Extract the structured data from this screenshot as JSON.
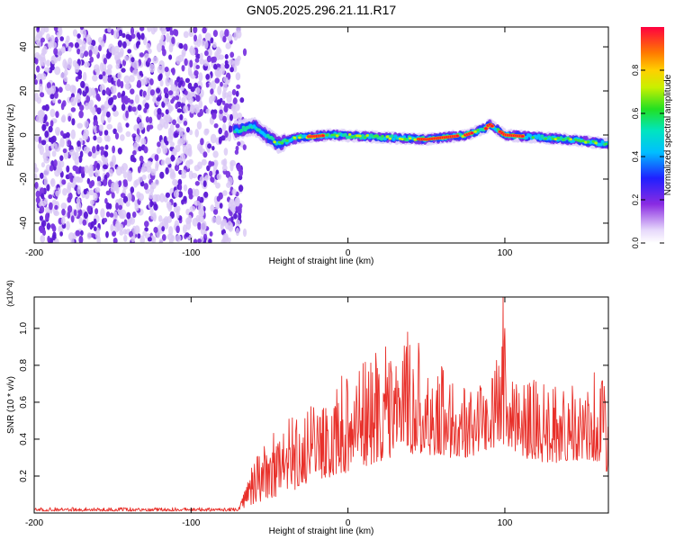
{
  "figure_title": "GN05.2025.296.21.11.R17",
  "colors": {
    "snr_line": "#e8302a",
    "axis": "#000000",
    "spec_faint": "#d9c8f5",
    "spec_dot": "#7a36e0",
    "spec_dark": "#5a17d4"
  },
  "chart_data": [
    {
      "id": "spectrogram",
      "type": "heatmap",
      "title": "GN05.2025.296.21.11.R17",
      "xlabel": "Height of straight line (km)",
      "ylabel": "Frequency (Hz)",
      "xlim": [
        -200,
        166
      ],
      "ylim": [
        -49,
        49
      ],
      "x_ticks": [
        -200,
        -100,
        0,
        100
      ],
      "x_tick_labels": [
        "-200",
        "-100",
        "0",
        "100"
      ],
      "y_ticks": [
        -40,
        -20,
        0,
        20,
        40
      ],
      "y_tick_labels": [
        "-40",
        "-20",
        "0",
        "20",
        "40"
      ],
      "colorbar": {
        "label": "Normalized spectral amplitude",
        "range": [
          0,
          1
        ],
        "ticks": [
          0,
          0.2,
          0.4,
          0.6,
          0.8
        ],
        "tick_labels": [
          "0.0",
          "0.2",
          "0.4",
          "0.6",
          "0.8"
        ],
        "colormap": "rainbow (white-violet-blue-cyan-green-yellow-red)"
      },
      "features": {
        "noise_region_x": [
          -200,
          -68
        ],
        "signal_start_x": -72,
        "signal_center_freq_points": [
          [
            -72,
            2
          ],
          [
            -60,
            4
          ],
          [
            -45,
            -4
          ],
          [
            -30,
            -1
          ],
          [
            -10,
            0
          ],
          [
            20,
            -1
          ],
          [
            50,
            -2
          ],
          [
            75,
            0
          ],
          [
            88,
            3
          ],
          [
            90,
            5
          ],
          [
            100,
            0
          ],
          [
            140,
            -2
          ],
          [
            166,
            -4
          ]
        ],
        "peak_amplitude_x_ranges": [
          [
            -25,
            -15
          ],
          [
            45,
            70
          ],
          [
            75,
            80
          ],
          [
            88,
            92
          ],
          [
            97,
            112
          ]
        ]
      }
    },
    {
      "id": "snr",
      "type": "line",
      "xlabel": "Height of straight line (km)",
      "ylabel": "SNR (10 * v/v)",
      "y_scale_note": "(x10^4)",
      "xlim": [
        -200,
        166
      ],
      "ylim": [
        0,
        1.17
      ],
      "x_ticks": [
        -200,
        -100,
        0,
        100
      ],
      "x_tick_labels": [
        "-200",
        "-100",
        "0",
        "100"
      ],
      "y_ticks": [
        0.2,
        0.4,
        0.6,
        0.8,
        1.0
      ],
      "y_tick_labels": [
        "0.2",
        "0.4",
        "0.6",
        "0.8",
        "1.0"
      ],
      "series": [
        {
          "name": "SNR",
          "envelope_x": [
            -200,
            -70,
            -60,
            -50,
            -40,
            -30,
            -20,
            -10,
            0,
            10,
            20,
            30,
            40,
            50,
            60,
            70,
            80,
            90,
            95,
            100,
            105,
            110,
            120,
            130,
            140,
            150,
            160,
            166
          ],
          "envelope_low": [
            0.01,
            0.01,
            0.05,
            0.08,
            0.1,
            0.14,
            0.17,
            0.2,
            0.22,
            0.25,
            0.28,
            0.3,
            0.32,
            0.32,
            0.3,
            0.3,
            0.3,
            0.35,
            0.36,
            0.37,
            0.35,
            0.3,
            0.28,
            0.27,
            0.28,
            0.29,
            0.28,
            0.2
          ],
          "envelope_high": [
            0.03,
            0.03,
            0.28,
            0.42,
            0.52,
            0.55,
            0.6,
            0.66,
            0.8,
            0.86,
            0.9,
            0.92,
            0.98,
            0.85,
            0.8,
            0.7,
            0.68,
            0.75,
            0.85,
            1.17,
            0.7,
            0.72,
            0.74,
            0.72,
            0.68,
            0.74,
            0.76,
            0.65
          ],
          "spikes": [
            {
              "x": 38,
              "y": 0.98
            },
            {
              "x": 45,
              "y": 0.92
            },
            {
              "x": 99,
              "y": 1.17
            },
            {
              "x": 100,
              "y": 1.0
            },
            {
              "x": 157,
              "y": 0.76
            }
          ]
        }
      ]
    }
  ]
}
